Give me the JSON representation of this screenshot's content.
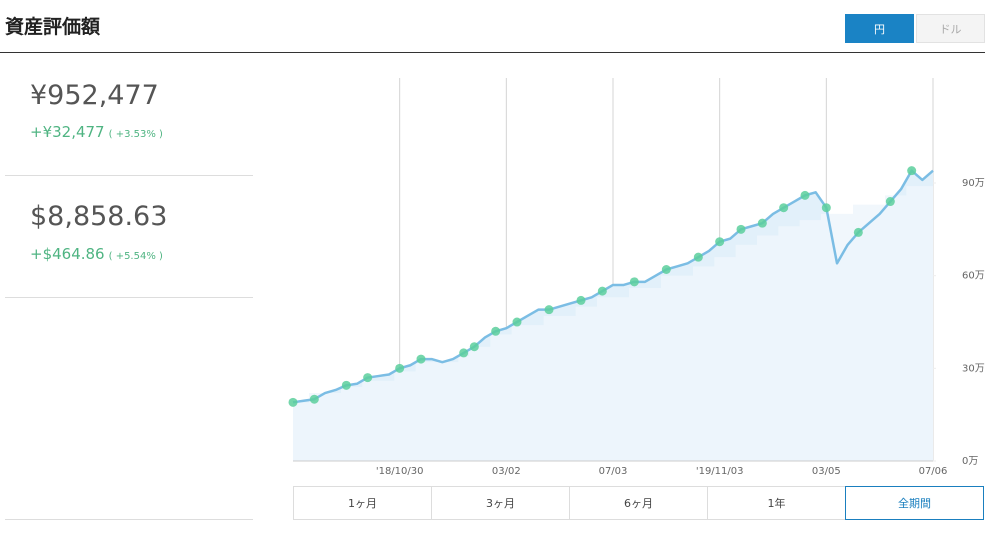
{
  "header": {
    "title": "資産評価額",
    "currency_toggle": [
      "円",
      "ドル"
    ]
  },
  "summary": [
    {
      "value": "¥952,477",
      "change": "+¥32,477",
      "change_pct": "( +3.53% )"
    },
    {
      "value": "$8,858.63",
      "change": "+$464.86",
      "change_pct": "( +5.54% )"
    }
  ],
  "chart_data": {
    "type": "area",
    "categories": [
      null,
      null,
      null,
      null,
      null,
      null,
      null,
      null,
      null,
      null,
      "'18/10/30",
      null,
      null,
      null,
      null,
      null,
      null,
      null,
      null,
      null,
      "03/02",
      null,
      null,
      null,
      null,
      null,
      null,
      null,
      null,
      null,
      "07/03",
      null,
      null,
      null,
      null,
      null,
      null,
      null,
      null,
      null,
      "'19/11/03",
      null,
      null,
      null,
      null,
      null,
      null,
      null,
      null,
      null,
      "03/05",
      null,
      null,
      null,
      null,
      null,
      null,
      null,
      null,
      null,
      "07/06"
    ],
    "series": [
      {
        "color": "#7bbde4",
        "values": [
          19,
          19.5,
          20,
          22,
          23,
          24.5,
          25,
          27,
          27.5,
          28,
          30,
          31,
          33,
          33,
          32,
          33,
          35,
          37,
          40,
          42,
          43,
          45,
          47,
          49,
          49,
          50,
          51,
          52,
          53,
          55,
          57,
          57,
          58,
          58,
          60,
          62,
          63,
          64,
          66,
          68,
          71,
          72,
          75,
          76,
          77,
          80,
          82,
          84,
          86,
          87,
          82,
          64,
          70,
          74,
          77,
          80,
          84,
          88,
          94,
          91,
          94
        ]
      },
      {
        "color": "#eef6fc",
        "step": true,
        "values": [
          19,
          19,
          22,
          22,
          22,
          24,
          24,
          26,
          26,
          26,
          29,
          29,
          32,
          32,
          32,
          32,
          34,
          37,
          37,
          41,
          41,
          44,
          44,
          44,
          47,
          47,
          47,
          50,
          50,
          53,
          53,
          53,
          56,
          56,
          56,
          60,
          60,
          60,
          63,
          63,
          66,
          66,
          70,
          70,
          73,
          73,
          76,
          76,
          78,
          78,
          80,
          80,
          80,
          83,
          83,
          83,
          86,
          86,
          89,
          89,
          89
        ]
      }
    ],
    "area_color": "#e2f0fa",
    "marker_color": "#5ccf9c",
    "markers": true,
    "ylim": [
      0,
      124
    ],
    "yticks": [
      {
        "value": 0,
        "label": "0万"
      },
      {
        "value": 30,
        "label": "30万"
      },
      {
        "value": 60,
        "label": "60万"
      },
      {
        "value": 90,
        "label": "90万"
      }
    ],
    "grid": "x"
  },
  "range_buttons": [
    "1ヶ月",
    "3ヶ月",
    "6ヶ月",
    "1年",
    "全期間"
  ],
  "selected_range": 4
}
